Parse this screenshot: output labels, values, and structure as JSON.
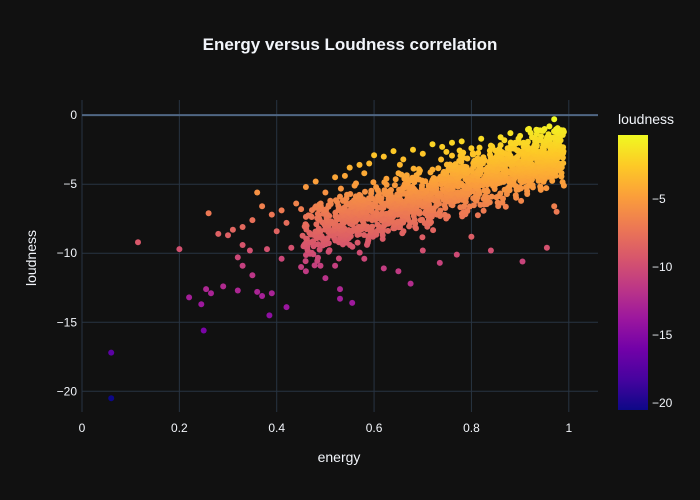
{
  "chart_data": {
    "type": "scatter",
    "title": "Energy versus Loudness correlation",
    "xlabel": "energy",
    "ylabel": "loudness",
    "xlim": [
      0,
      1.06
    ],
    "ylim": [
      -21.5,
      1.1
    ],
    "x_ticks": [
      0,
      0.2,
      0.4,
      0.6,
      0.8,
      1
    ],
    "x_tick_labels": [
      "0",
      "0.2",
      "0.4",
      "0.6",
      "0.8",
      "1"
    ],
    "y_ticks": [
      0,
      -5,
      -10,
      -15,
      -20
    ],
    "y_tick_labels": [
      "0",
      "−5",
      "−10",
      "−15",
      "−20"
    ],
    "grid": true,
    "colorbar": {
      "title": "loudness",
      "range": [
        -20.5,
        -0.3
      ],
      "ticks": [
        -5,
        -10,
        -15,
        -20
      ],
      "tick_labels": [
        "−5",
        "−10",
        "−15",
        "−20"
      ],
      "colorscale": [
        "#0d0887",
        "#46039f",
        "#7201a8",
        "#9c179e",
        "#bd3786",
        "#d8576b",
        "#ed7953",
        "#fb9f3a",
        "#fdca26",
        "#f0f921"
      ]
    },
    "points": [
      [
        0.06,
        -20.5
      ],
      [
        0.06,
        -17.2
      ],
      [
        0.115,
        -9.2
      ],
      [
        0.2,
        -9.7
      ],
      [
        0.22,
        -13.2
      ],
      [
        0.245,
        -13.7
      ],
      [
        0.25,
        -15.6
      ],
      [
        0.255,
        -12.6
      ],
      [
        0.26,
        -7.1
      ],
      [
        0.265,
        -12.9
      ],
      [
        0.28,
        -8.6
      ],
      [
        0.29,
        -12.4
      ],
      [
        0.32,
        -10.3
      ],
      [
        0.32,
        -12.7
      ],
      [
        0.33,
        -9.4
      ],
      [
        0.36,
        -12.8
      ],
      [
        0.37,
        -13.1
      ],
      [
        0.385,
        -14.5
      ],
      [
        0.39,
        -12.9
      ],
      [
        0.42,
        -13.9
      ],
      [
        0.33,
        -10.9
      ],
      [
        0.345,
        -9.8
      ],
      [
        0.35,
        -11.6
      ],
      [
        0.38,
        -9.7
      ],
      [
        0.41,
        -10.4
      ],
      [
        0.43,
        -9.6
      ],
      [
        0.45,
        -11.0
      ],
      [
        0.46,
        -11.3
      ],
      [
        0.49,
        -10.9
      ],
      [
        0.5,
        -11.8
      ],
      [
        0.52,
        -10.9
      ],
      [
        0.53,
        -13.3
      ],
      [
        0.53,
        -12.6
      ],
      [
        0.555,
        -13.6
      ],
      [
        0.58,
        -10.4
      ],
      [
        0.62,
        -11.1
      ],
      [
        0.65,
        -11.3
      ],
      [
        0.675,
        -12.2
      ],
      [
        0.7,
        -9.8
      ],
      [
        0.735,
        -10.7
      ],
      [
        0.77,
        -10.1
      ],
      [
        0.8,
        -8.8
      ],
      [
        0.84,
        -9.8
      ],
      [
        0.905,
        -10.6
      ],
      [
        0.955,
        -9.6
      ],
      [
        0.97,
        -6.6
      ],
      [
        0.975,
        -7.0
      ],
      [
        0.99,
        -5.1
      ],
      [
        0.97,
        -0.3
      ],
      [
        0.95,
        -1.0
      ],
      [
        0.9,
        -1.5
      ],
      [
        0.88,
        -1.3
      ],
      [
        0.93,
        -1.7
      ],
      [
        0.96,
        -2.1
      ],
      [
        0.98,
        -2.2
      ],
      [
        0.3,
        -8.7
      ],
      [
        0.31,
        -8.3
      ],
      [
        0.33,
        -8.1
      ],
      [
        0.35,
        -7.6
      ],
      [
        0.36,
        -5.6
      ],
      [
        0.37,
        -6.6
      ],
      [
        0.39,
        -7.2
      ],
      [
        0.4,
        -8.4
      ],
      [
        0.41,
        -6.9
      ],
      [
        0.42,
        -7.8
      ],
      [
        0.44,
        -6.4
      ],
      [
        0.45,
        -6.8
      ],
      [
        0.46,
        -5.2
      ],
      [
        0.47,
        -7.3
      ],
      [
        0.48,
        -4.8
      ],
      [
        0.5,
        -5.6
      ],
      [
        0.51,
        -6.2
      ],
      [
        0.52,
        -4.5
      ],
      [
        0.53,
        -5.9
      ],
      [
        0.54,
        -4.4
      ],
      [
        0.55,
        -3.8
      ],
      [
        0.56,
        -5.1
      ],
      [
        0.57,
        -3.6
      ],
      [
        0.58,
        -4.2
      ],
      [
        0.59,
        -3.5
      ],
      [
        0.6,
        -2.9
      ],
      [
        0.62,
        -3.0
      ],
      [
        0.64,
        -2.6
      ],
      [
        0.66,
        -3.2
      ],
      [
        0.68,
        -2.5
      ],
      [
        0.7,
        -2.8
      ],
      [
        0.72,
        -2.1
      ],
      [
        0.74,
        -2.3
      ],
      [
        0.76,
        -2.0
      ],
      [
        0.78,
        -1.9
      ],
      [
        0.8,
        -2.4
      ],
      [
        0.82,
        -1.7
      ],
      [
        0.84,
        -2.2
      ],
      [
        0.86,
        -1.6
      ],
      [
        0.89,
        -2.0
      ]
    ],
    "generated_cluster": {
      "count": 1500,
      "x_range": [
        0.45,
        0.99
      ],
      "slope": 11.5,
      "intercept": -14.0,
      "spread": 1.7
    }
  }
}
